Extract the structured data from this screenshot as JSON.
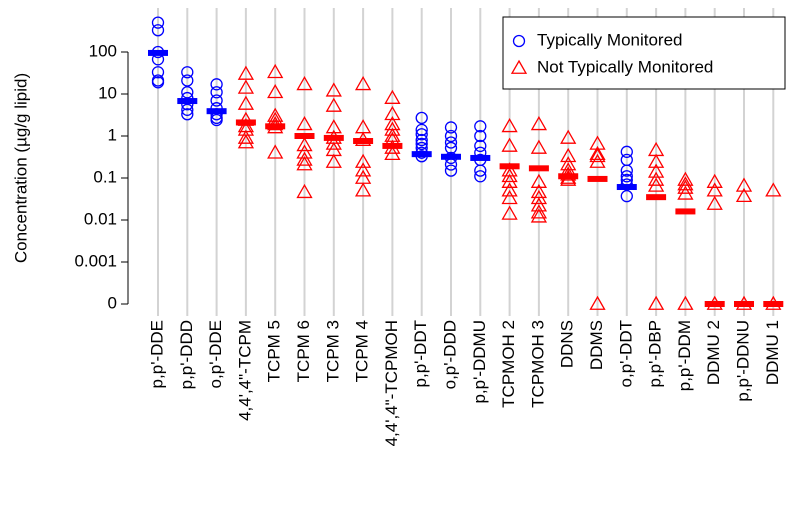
{
  "chart_data": {
    "type": "strip",
    "y_label": "Concentration (µg/g lipid)",
    "log_scale": true,
    "ylim": [
      0,
      1000
    ],
    "yticks": [
      0,
      0.001,
      0.01,
      0.1,
      1,
      10,
      100
    ],
    "grid": true,
    "legend": "top right",
    "series": [
      {
        "name": "Typically Monitored",
        "color": "#0000ff",
        "marker": "circle"
      },
      {
        "name": "Not Typically Monitored",
        "color": "#ff0000",
        "marker": "triangle"
      }
    ],
    "groups": [
      {
        "category": "p,p'-DDE",
        "series": 0,
        "values": [
          500,
          330,
          100,
          67,
          33,
          21,
          19
        ],
        "median": 95
      },
      {
        "category": "p,p'-DDD",
        "series": 0,
        "values": [
          33,
          21,
          11,
          8,
          5.7,
          4.2,
          3.3
        ],
        "median": 6.8
      },
      {
        "category": "o,p'-DDE",
        "series": 0,
        "values": [
          17,
          11,
          7,
          4.6,
          3.3,
          2.7,
          2.4
        ],
        "median": 3.9
      },
      {
        "category": "4,4',4\"-TCPM",
        "series": 1,
        "values": [
          30,
          14,
          5.8,
          2.4,
          1.7,
          1.4,
          0.9,
          0.7
        ],
        "median": 2.1
      },
      {
        "category": "TCPM 5",
        "series": 1,
        "values": [
          33,
          11,
          3,
          2.4,
          1.9,
          1.6,
          0.4
        ],
        "median": 1.7
      },
      {
        "category": "TCPM 6",
        "series": 1,
        "values": [
          17,
          1.9,
          0.6,
          0.4,
          0.27,
          0.21,
          0.046
        ],
        "median": 1.0
      },
      {
        "category": "TCPM 3",
        "series": 1,
        "values": [
          12,
          5.2,
          1.6,
          0.9,
          0.65,
          0.46,
          0.24
        ],
        "median": 0.9
      },
      {
        "category": "TCPM 4",
        "series": 1,
        "values": [
          17,
          1.6,
          0.8,
          0.24,
          0.15,
          0.1,
          0.05
        ],
        "median": 0.76
      },
      {
        "category": "4,4',4\"-TCPMOH",
        "series": 1,
        "values": [
          8,
          3.3,
          1.9,
          1.4,
          1,
          0.8,
          0.52,
          0.37
        ],
        "median": 0.58
      },
      {
        "category": "p,p'-DDT",
        "series": 0,
        "values": [
          2.7,
          1.4,
          1.1,
          0.8,
          0.65,
          0.52,
          0.4,
          0.33
        ],
        "median": 0.37
      },
      {
        "category": "o,p'-DDD",
        "series": 0,
        "values": [
          1.6,
          1,
          0.7,
          0.52,
          0.3,
          0.21,
          0.15
        ],
        "median": 0.32
      },
      {
        "category": "p,p'-DDMU",
        "series": 0,
        "values": [
          1.7,
          1,
          0.58,
          0.4,
          0.27,
          0.15,
          0.11
        ],
        "median": 0.3
      },
      {
        "category": "TCPMOH 2",
        "series": 1,
        "values": [
          1.7,
          0.58,
          0.15,
          0.11,
          0.08,
          0.05,
          0.033,
          0.014
        ],
        "median": 0.19
      },
      {
        "category": "TCPMOH 3",
        "series": 1,
        "values": [
          1.9,
          0.52,
          0.08,
          0.046,
          0.033,
          0.022,
          0.015,
          0.012
        ],
        "median": 0.17
      },
      {
        "category": "DDNS",
        "series": 1,
        "values": [
          0.9,
          0.33,
          0.21,
          0.15,
          0.12,
          0.1,
          0.09
        ],
        "median": 0.11
      },
      {
        "category": "DDMS",
        "series": 1,
        "values": [
          0.65,
          0.37,
          0.33,
          0.24,
          0
        ],
        "median": 0.095
      },
      {
        "category": "o,p'-DDT",
        "series": 0,
        "values": [
          0.42,
          0.27,
          0.15,
          0.11,
          0.09,
          0.07,
          0.037
        ],
        "median": 0.061
      },
      {
        "category": "p,p'-DBP",
        "series": 1,
        "values": [
          0.46,
          0.24,
          0.14,
          0.09,
          0.065,
          0
        ],
        "median": 0.035
      },
      {
        "category": "p,p'-DDM",
        "series": 1,
        "values": [
          0.09,
          0.07,
          0.058,
          0.042,
          0
        ],
        "median": 0.016
      },
      {
        "category": "DDMU 2",
        "series": 1,
        "values": [
          0.08,
          0.05,
          0.024,
          0
        ],
        "median": 0
      },
      {
        "category": "p,p'-DDNU",
        "series": 1,
        "values": [
          0.065,
          0.037,
          0
        ],
        "median": 0
      },
      {
        "category": "DDMU 1",
        "series": 1,
        "values": [
          0.05,
          0
        ],
        "median": 0
      }
    ]
  }
}
